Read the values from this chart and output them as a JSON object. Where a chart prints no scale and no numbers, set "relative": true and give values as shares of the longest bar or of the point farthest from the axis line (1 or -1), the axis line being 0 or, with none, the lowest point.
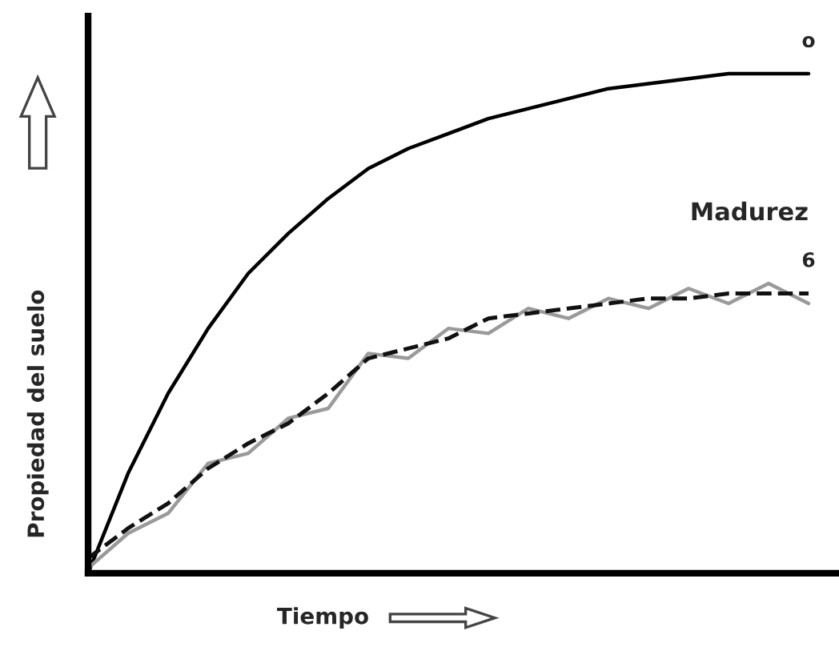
{
  "chart_data": {
    "type": "line",
    "relative": true,
    "xlabel": "Tiempo",
    "ylabel": "Propiedad del suelo",
    "legend": false,
    "marker": "none",
    "categories": [
      null,
      null,
      null,
      null,
      null,
      null,
      null,
      null,
      null,
      null,
      null,
      null,
      null,
      null,
      null,
      null,
      null,
      null,
      null
    ],
    "series": [
      {
        "name": "o",
        "color": "#000000",
        "line_style": "solid",
        "values": [
          0,
          0.2,
          0.36,
          0.49,
          0.6,
          0.68,
          0.75,
          0.81,
          0.85,
          0.88,
          0.91,
          0.93,
          0.95,
          0.97,
          0.98,
          0.99,
          1.0,
          1.0,
          1.0
        ]
      },
      {
        "color": "#9a9a9a",
        "line_style": "solid",
        "values": [
          0.01,
          0.08,
          0.12,
          0.22,
          0.24,
          0.31,
          0.33,
          0.44,
          0.43,
          0.49,
          0.48,
          0.53,
          0.51,
          0.55,
          0.53,
          0.57,
          0.54,
          0.58,
          0.54
        ]
      },
      {
        "name": "6",
        "color": "#111111",
        "line_style": "dashed",
        "values": [
          0.03,
          0.09,
          0.14,
          0.21,
          0.26,
          0.3,
          0.36,
          0.43,
          0.45,
          0.47,
          0.51,
          0.52,
          0.53,
          0.54,
          0.55,
          0.55,
          0.56,
          0.56,
          0.56
        ]
      }
    ],
    "annotations": [
      "Madurez"
    ]
  }
}
